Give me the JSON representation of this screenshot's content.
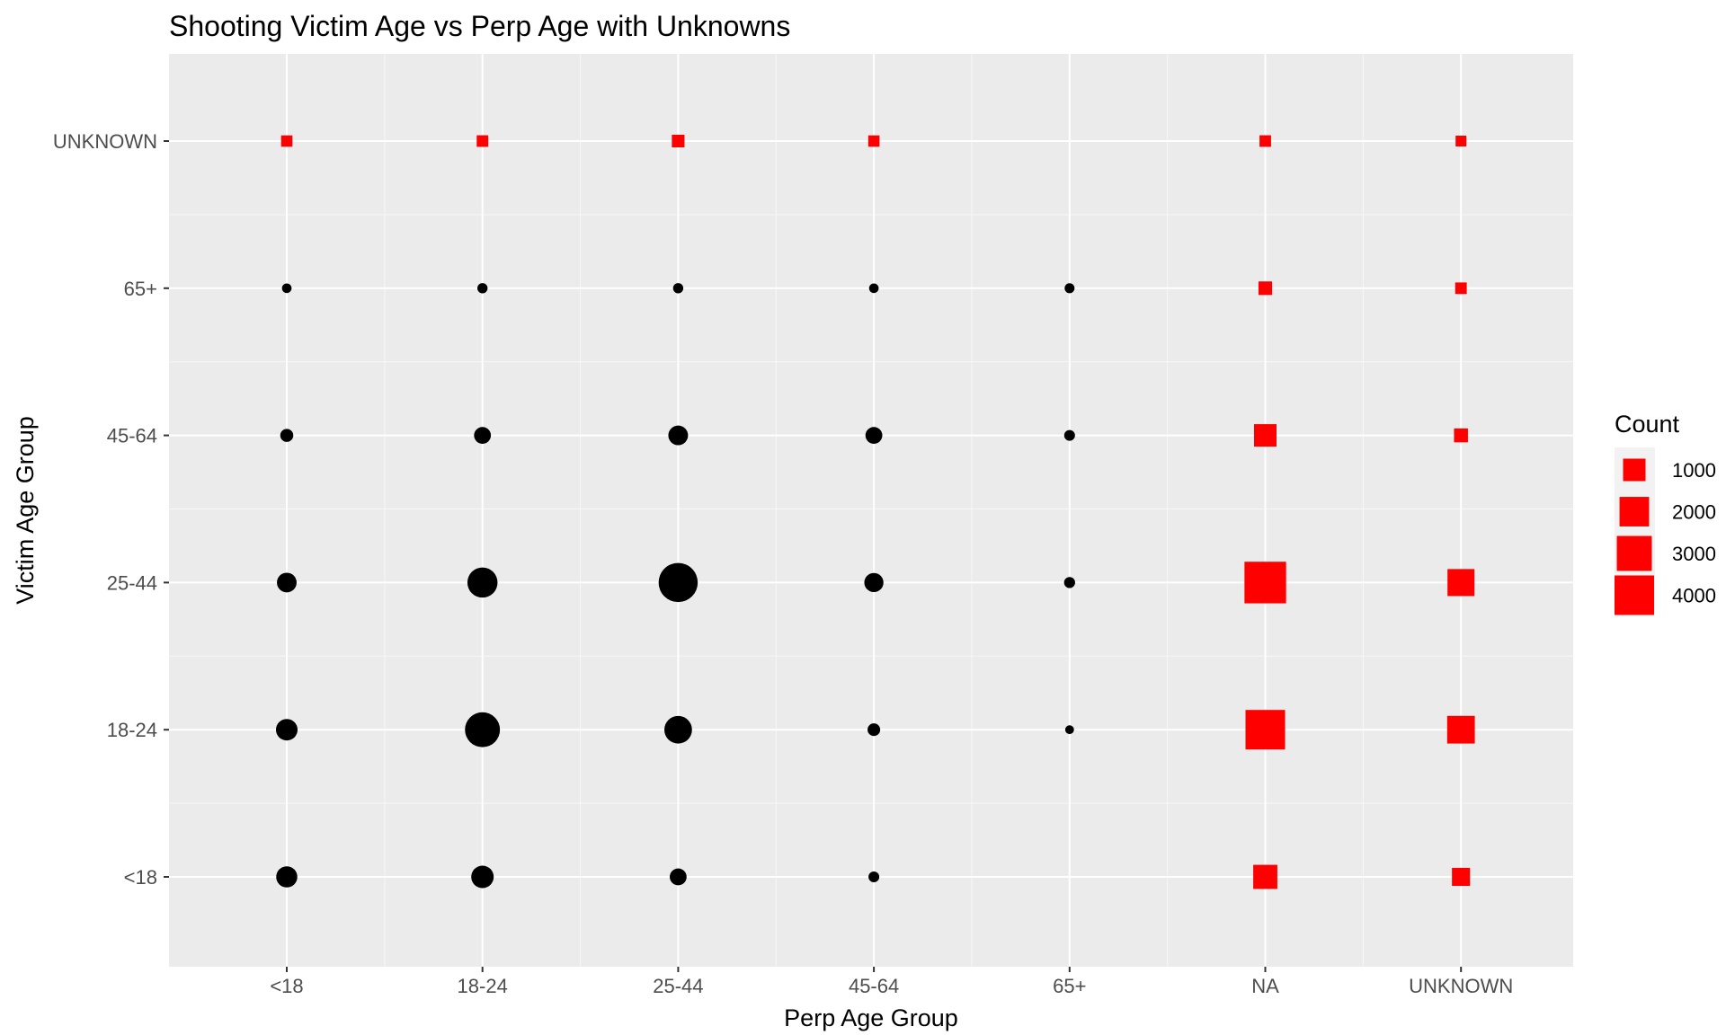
{
  "chart_data": {
    "type": "scatter",
    "title": "Shooting Victim Age vs Perp Age with Unknowns",
    "xlabel": "Perp Age Group",
    "ylabel": "Victim Age Group",
    "x_categories": [
      "<18",
      "18-24",
      "25-44",
      "45-64",
      "65+",
      "NA",
      "UNKNOWN"
    ],
    "y_categories": [
      "<18",
      "18-24",
      "25-44",
      "45-64",
      "65+",
      "UNKNOWN"
    ],
    "grid": true,
    "legend": {
      "title": "Count",
      "position": "right",
      "entries": [
        {
          "label": "1000",
          "value": 1000
        },
        {
          "label": "2000",
          "value": 2000
        },
        {
          "label": "3000",
          "value": 3000
        },
        {
          "label": "4000",
          "value": 4000
        }
      ]
    },
    "colors": {
      "known": "#000000",
      "unknown": "#ff0000",
      "panel": "#ebebeb",
      "grid": "#ffffff"
    },
    "points": [
      {
        "x": "<18",
        "y": "UNKNOWN",
        "count": 120,
        "unknown": true
      },
      {
        "x": "18-24",
        "y": "UNKNOWN",
        "count": 130,
        "unknown": true
      },
      {
        "x": "25-44",
        "y": "UNKNOWN",
        "count": 180,
        "unknown": true
      },
      {
        "x": "45-64",
        "y": "UNKNOWN",
        "count": 120,
        "unknown": true
      },
      {
        "x": "NA",
        "y": "UNKNOWN",
        "count": 130,
        "unknown": true
      },
      {
        "x": "UNKNOWN",
        "y": "UNKNOWN",
        "count": 100,
        "unknown": true
      },
      {
        "x": "<18",
        "y": "65+",
        "count": 60,
        "unknown": false
      },
      {
        "x": "18-24",
        "y": "65+",
        "count": 80,
        "unknown": false
      },
      {
        "x": "25-44",
        "y": "65+",
        "count": 80,
        "unknown": false
      },
      {
        "x": "45-64",
        "y": "65+",
        "count": 60,
        "unknown": false
      },
      {
        "x": "65+",
        "y": "65+",
        "count": 70,
        "unknown": false
      },
      {
        "x": "NA",
        "y": "65+",
        "count": 230,
        "unknown": true
      },
      {
        "x": "UNKNOWN",
        "y": "65+",
        "count": 130,
        "unknown": true
      },
      {
        "x": "<18",
        "y": "45-64",
        "count": 200,
        "unknown": false
      },
      {
        "x": "18-24",
        "y": "45-64",
        "count": 450,
        "unknown": false
      },
      {
        "x": "25-44",
        "y": "45-64",
        "count": 700,
        "unknown": false
      },
      {
        "x": "45-64",
        "y": "45-64",
        "count": 450,
        "unknown": false
      },
      {
        "x": "65+",
        "y": "45-64",
        "count": 100,
        "unknown": false
      },
      {
        "x": "NA",
        "y": "45-64",
        "count": 1000,
        "unknown": true
      },
      {
        "x": "UNKNOWN",
        "y": "45-64",
        "count": 250,
        "unknown": true
      },
      {
        "x": "<18",
        "y": "25-44",
        "count": 700,
        "unknown": false
      },
      {
        "x": "18-24",
        "y": "25-44",
        "count": 2100,
        "unknown": false
      },
      {
        "x": "25-44",
        "y": "25-44",
        "count": 3900,
        "unknown": false
      },
      {
        "x": "45-64",
        "y": "25-44",
        "count": 650,
        "unknown": false
      },
      {
        "x": "65+",
        "y": "25-44",
        "count": 110,
        "unknown": false
      },
      {
        "x": "NA",
        "y": "25-44",
        "count": 4500,
        "unknown": true
      },
      {
        "x": "UNKNOWN",
        "y": "25-44",
        "count": 1600,
        "unknown": true
      },
      {
        "x": "<18",
        "y": "18-24",
        "count": 900,
        "unknown": false
      },
      {
        "x": "18-24",
        "y": "18-24",
        "count": 3000,
        "unknown": false
      },
      {
        "x": "25-44",
        "y": "18-24",
        "count": 1700,
        "unknown": false
      },
      {
        "x": "45-64",
        "y": "18-24",
        "count": 180,
        "unknown": false
      },
      {
        "x": "65+",
        "y": "18-24",
        "count": 40,
        "unknown": false
      },
      {
        "x": "NA",
        "y": "18-24",
        "count": 4000,
        "unknown": true
      },
      {
        "x": "UNKNOWN",
        "y": "18-24",
        "count": 1700,
        "unknown": true
      },
      {
        "x": "<18",
        "y": "<18",
        "count": 850,
        "unknown": false
      },
      {
        "x": "18-24",
        "y": "<18",
        "count": 1000,
        "unknown": false
      },
      {
        "x": "25-44",
        "y": "<18",
        "count": 450,
        "unknown": false
      },
      {
        "x": "45-64",
        "y": "<18",
        "count": 100,
        "unknown": false
      },
      {
        "x": "NA",
        "y": "<18",
        "count": 1200,
        "unknown": true
      },
      {
        "x": "UNKNOWN",
        "y": "<18",
        "count": 550,
        "unknown": true
      }
    ]
  }
}
